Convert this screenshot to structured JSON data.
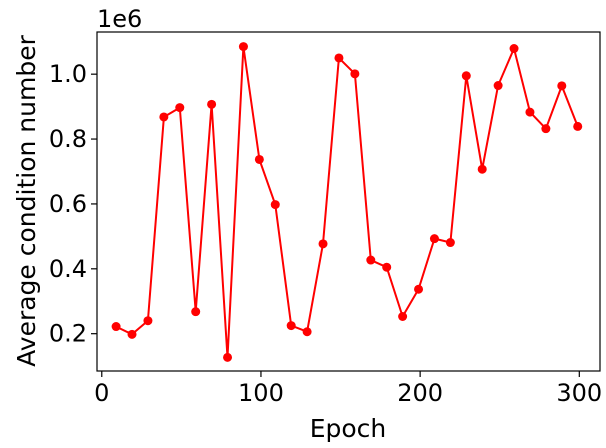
{
  "chart_data": {
    "type": "line",
    "xlabel": "Epoch",
    "ylabel": "Average condition number",
    "y_scale_label": "1e6",
    "xlim": [
      -3,
      313
    ],
    "ylim": [
      0.085,
      1.13
    ],
    "x_ticks": [
      0,
      100,
      200,
      300
    ],
    "y_ticks": [
      0.2,
      0.4,
      0.6,
      0.8,
      1.0
    ],
    "x_tick_labels": [
      "0",
      "100",
      "200",
      "300"
    ],
    "y_tick_labels": [
      "0.2",
      "0.4",
      "0.6",
      "0.8",
      "1.0"
    ],
    "grid": false,
    "series": [
      {
        "color": "#ff0000",
        "marker": "circle",
        "x": [
          9,
          19,
          29,
          39,
          49,
          59,
          69,
          79,
          89,
          99,
          109,
          119,
          129,
          139,
          149,
          159,
          169,
          179,
          189,
          199,
          209,
          219,
          229,
          239,
          249,
          259,
          269,
          279,
          289,
          299
        ],
        "y": [
          0.222,
          0.198,
          0.24,
          0.868,
          0.897,
          0.268,
          0.907,
          0.127,
          1.085,
          0.737,
          0.598,
          0.225,
          0.206,
          0.477,
          1.05,
          1.001,
          0.427,
          0.405,
          0.253,
          0.337,
          0.493,
          0.481,
          0.995,
          0.707,
          0.965,
          1.079,
          0.883,
          0.832,
          0.964,
          0.839
        ]
      }
    ]
  }
}
